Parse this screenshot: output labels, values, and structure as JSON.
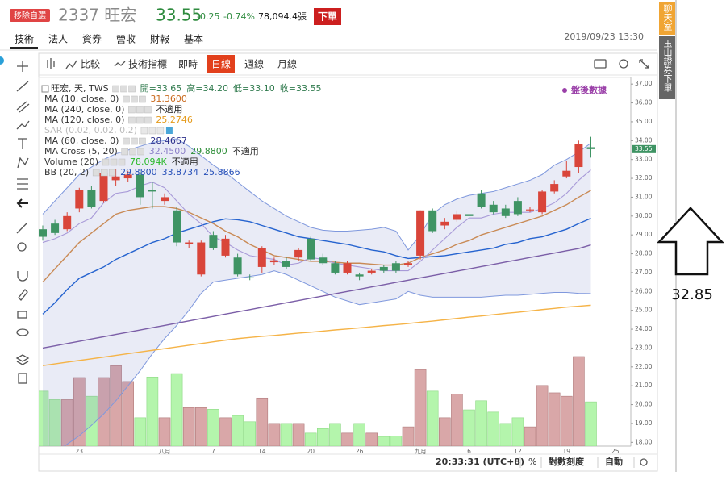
{
  "header": {
    "watch_button": "移除自選",
    "code_name": "2337 旺宏",
    "price": "33.55",
    "change": "-0.25",
    "change_pct": "-0.74%",
    "volume": "78,094.4張",
    "order_button": "下單"
  },
  "tabs": [
    "技術",
    "法人",
    "資券",
    "營收",
    "財報",
    "基本"
  ],
  "active_tab": 0,
  "datetime": "2019/09/23 13:30",
  "toolbar": {
    "compare": "比較",
    "indicators": "技術指標",
    "periods": [
      "即時",
      "日線",
      "週線",
      "月線"
    ],
    "active_period": 1
  },
  "chart_data": {
    "type": "candlestick",
    "after_hours_label": "盤後數據",
    "categories": [
      null,
      null,
      null,
      "23",
      null,
      null,
      null,
      null,
      null,
      null,
      "八月",
      null,
      null,
      null,
      "7",
      null,
      null,
      null,
      "14",
      null,
      null,
      null,
      "20",
      null,
      null,
      null,
      "26",
      null,
      null,
      null,
      null,
      "九月",
      null,
      null,
      null,
      "6",
      null,
      null,
      null,
      "12",
      null,
      null,
      null,
      "19",
      null,
      null,
      null,
      "25"
    ],
    "open": [
      29.3,
      29.6,
      29.3,
      30.4,
      31.4,
      30.8,
      31.9,
      32.0,
      32.2,
      31.4,
      30.8,
      30.3,
      28.5,
      26.9,
      29.0,
      27.9,
      27.8,
      26.75,
      27.3,
      27.55,
      27.6,
      27.8,
      28.8,
      27.8,
      27.5,
      27.0,
      26.9,
      27.0,
      27.3,
      27.5,
      27.4,
      27.9,
      30.3,
      29.5,
      29.8,
      30.1,
      31.2,
      30.6,
      30.4,
      30.8,
      30.3,
      30.2,
      31.3,
      32.1,
      32.6,
      33.65,
      null,
      null
    ],
    "high": [
      29.5,
      29.8,
      30.2,
      31.5,
      31.6,
      32.5,
      32.5,
      32.4,
      32.4,
      31.8,
      31.2,
      30.5,
      28.7,
      28.7,
      29.2,
      29.0,
      28.0,
      26.9,
      28.4,
      27.8,
      27.8,
      28.3,
      28.9,
      28.0,
      27.6,
      27.6,
      27.0,
      27.2,
      27.4,
      27.6,
      27.6,
      30.3,
      30.4,
      29.9,
      30.3,
      30.3,
      31.4,
      30.8,
      30.6,
      31.0,
      30.5,
      31.4,
      31.9,
      32.9,
      34.0,
      34.2,
      null,
      null
    ],
    "low": [
      28.7,
      29.0,
      29.2,
      30.2,
      30.4,
      30.7,
      31.6,
      31.8,
      30.6,
      30.4,
      30.6,
      28.4,
      28.3,
      26.8,
      28.2,
      27.8,
      26.8,
      26.6,
      27.0,
      27.4,
      27.2,
      27.6,
      27.6,
      27.4,
      26.9,
      26.9,
      26.6,
      26.9,
      27.0,
      27.0,
      27.3,
      27.7,
      29.1,
      29.3,
      29.7,
      29.9,
      30.4,
      30.1,
      29.9,
      30.0,
      30.2,
      30.1,
      31.2,
      32.0,
      32.3,
      33.1,
      null,
      null
    ],
    "close": [
      28.9,
      29.1,
      30.0,
      31.4,
      30.5,
      32.3,
      32.1,
      32.2,
      31.0,
      31.3,
      31.0,
      28.6,
      28.6,
      28.6,
      28.3,
      28.8,
      26.9,
      26.7,
      28.3,
      27.65,
      27.3,
      28.2,
      27.7,
      27.5,
      27.0,
      27.5,
      26.8,
      27.1,
      27.1,
      27.1,
      27.5,
      30.3,
      29.2,
      29.7,
      30.1,
      30.0,
      30.5,
      30.2,
      30.0,
      30.1,
      30.35,
      31.3,
      31.7,
      32.4,
      33.8,
      33.55,
      null,
      null
    ],
    "volume": [
      97,
      82,
      82,
      121,
      88,
      121,
      142,
      114,
      50,
      122,
      50,
      128,
      68,
      68,
      65,
      50,
      54,
      43,
      85,
      40,
      40,
      40,
      23,
      31,
      40,
      23,
      40,
      23,
      17,
      18,
      34,
      135,
      97,
      50,
      92,
      64,
      80,
      60,
      40,
      50,
      34,
      107,
      94,
      88,
      158,
      78.094,
      null,
      null
    ],
    "up_color": "#d9453a",
    "down_color": "#3f9464",
    "volume_up_color": "#d9a7a8",
    "volume_down_color": "#b4f5ac",
    "band": {
      "color": "#7f98dd",
      "fill": "rgba(120,128,200,0.16)",
      "upper": [
        30.1,
        30.8,
        31.5,
        32.2,
        32.6,
        33.0,
        33.3,
        33.5,
        33.7,
        33.9,
        34.0,
        34.1,
        33.7,
        33.2,
        32.7,
        32.3,
        31.8,
        31.3,
        30.8,
        30.4,
        30.0,
        29.7,
        29.4,
        29.25,
        29.2,
        29.2,
        29.25,
        29.3,
        29.4,
        29.2,
        28.2,
        29.0,
        30.1,
        30.6,
        30.9,
        31.1,
        31.2,
        31.3,
        31.5,
        31.7,
        31.9,
        32.2,
        32.7,
        33.0,
        33.4,
        33.87,
        null,
        null
      ],
      "lower": [
        17.0,
        17.5,
        17.9,
        18.35,
        18.9,
        19.5,
        20.2,
        21.0,
        21.8,
        22.7,
        23.5,
        24.2,
        25.0,
        25.9,
        26.5,
        26.6,
        26.7,
        26.8,
        26.9,
        27.1,
        26.9,
        26.6,
        26.3,
        26.0,
        25.7,
        25.5,
        25.3,
        25.4,
        25.5,
        25.6,
        26.0,
        25.8,
        25.7,
        25.7,
        25.7,
        25.7,
        25.7,
        25.75,
        25.8,
        25.8,
        25.85,
        25.9,
        25.95,
        25.95,
        25.9,
        25.89,
        null,
        null
      ]
    },
    "series": [
      {
        "color": "#f5b347",
        "values": [
          22.07,
          22.16,
          22.25,
          22.34,
          22.43,
          22.52,
          22.61,
          22.7,
          22.79,
          22.88,
          22.97,
          23.06,
          23.15,
          23.24,
          23.33,
          23.42,
          23.5,
          23.56,
          23.62,
          23.67,
          23.73,
          23.79,
          23.84,
          23.9,
          23.96,
          24.01,
          24.07,
          24.13,
          24.19,
          24.24,
          24.3,
          24.37,
          24.43,
          24.5,
          24.57,
          24.64,
          24.7,
          24.77,
          24.84,
          24.9,
          24.97,
          25.04,
          25.1,
          25.17,
          25.22,
          25.27,
          null,
          null
        ]
      },
      {
        "color": "#7b5ea7",
        "values": [
          23.0,
          23.12,
          23.24,
          23.36,
          23.48,
          23.6,
          23.72,
          23.84,
          23.96,
          24.08,
          24.2,
          24.32,
          24.44,
          24.56,
          24.68,
          24.8,
          24.92,
          25.04,
          25.16,
          25.28,
          25.4,
          25.52,
          25.64,
          25.76,
          25.88,
          26.0,
          26.12,
          26.24,
          26.36,
          26.48,
          26.6,
          26.72,
          26.84,
          26.96,
          27.08,
          27.2,
          27.32,
          27.44,
          27.56,
          27.68,
          27.8,
          27.92,
          28.04,
          28.16,
          28.28,
          28.47,
          null,
          null
        ]
      },
      {
        "color": "#2563cf",
        "values": [
          24.8,
          25.4,
          26.1,
          26.7,
          27.0,
          27.3,
          27.7,
          28.0,
          28.3,
          28.6,
          28.8,
          29.1,
          29.3,
          29.5,
          29.7,
          29.85,
          29.8,
          29.7,
          29.5,
          29.3,
          29.1,
          28.9,
          28.8,
          28.7,
          28.6,
          28.5,
          28.35,
          28.2,
          28.1,
          27.9,
          27.75,
          27.8,
          27.85,
          27.9,
          28.0,
          28.1,
          28.2,
          28.3,
          28.5,
          28.6,
          28.8,
          28.9,
          29.1,
          29.3,
          29.6,
          29.88,
          null,
          null
        ]
      },
      {
        "color": "#c98a55",
        "values": [
          26.5,
          27.2,
          27.9,
          28.6,
          29.1,
          29.6,
          30.1,
          30.3,
          30.4,
          30.5,
          30.5,
          30.4,
          30.2,
          29.9,
          29.6,
          29.2,
          28.9,
          28.5,
          28.2,
          27.9,
          27.8,
          27.7,
          27.6,
          27.6,
          27.55,
          27.5,
          27.5,
          27.45,
          27.4,
          27.4,
          27.5,
          27.8,
          28.0,
          28.2,
          28.5,
          28.7,
          29.0,
          29.2,
          29.4,
          29.6,
          29.8,
          30.0,
          30.3,
          30.6,
          31.0,
          31.36,
          null,
          null
        ]
      },
      {
        "color": "#a89ad8",
        "values": [
          28.6,
          28.8,
          29.1,
          29.6,
          29.9,
          30.7,
          31.2,
          31.3,
          31.6,
          31.8,
          31.5,
          30.8,
          30.1,
          29.6,
          28.9,
          28.6,
          28.2,
          27.9,
          27.8,
          27.7,
          27.4,
          27.5,
          27.8,
          27.7,
          27.5,
          27.4,
          27.3,
          27.2,
          27.1,
          27.1,
          27.1,
          27.6,
          28.2,
          28.8,
          29.4,
          29.9,
          29.9,
          30.1,
          30.2,
          30.2,
          30.2,
          30.4,
          30.7,
          31.2,
          31.9,
          32.45,
          null,
          null
        ]
      }
    ],
    "last_price_label": "33.55",
    "last_price_color": "#3f9464",
    "ylim": [
      17.8,
      37.35
    ],
    "yticks": [
      {
        "value": 18,
        "label": "18.00"
      },
      {
        "value": 19,
        "label": "19.00"
      },
      {
        "value": 20,
        "label": "20.00"
      },
      {
        "value": 21,
        "label": "21.00"
      },
      {
        "value": 22,
        "label": "22.00"
      },
      {
        "value": 23,
        "label": "23.00"
      },
      {
        "value": 24,
        "label": "24.00"
      },
      {
        "value": 25,
        "label": "25.00"
      },
      {
        "value": 26,
        "label": "26.00"
      },
      {
        "value": 27,
        "label": "27.00"
      },
      {
        "value": 28,
        "label": "28.00"
      },
      {
        "value": 29,
        "label": "29.00"
      },
      {
        "value": 30,
        "label": "30.00"
      },
      {
        "value": 31,
        "label": "31.00"
      },
      {
        "value": 32,
        "label": "32.00"
      },
      {
        "value": 33,
        "label": "33.00"
      },
      {
        "value": 34,
        "label": "34.00"
      },
      {
        "value": 35,
        "label": "35.00"
      },
      {
        "value": 36,
        "label": "36.00"
      },
      {
        "value": 37,
        "label": "37.00"
      }
    ],
    "grid": false,
    "legend_rows": [
      {
        "label": "旺宏, 天, TWS",
        "readings": [
          {
            "text": "開=33.65",
            "color": "#2f7a4d"
          },
          {
            "text": "高=34.20",
            "color": "#2f7a4d"
          },
          {
            "text": "低=33.10",
            "color": "#2f7a4d"
          },
          {
            "text": "收=33.55",
            "color": "#2f7a4d"
          }
        ]
      },
      {
        "label": "MA (10, close, 0)",
        "readings": [
          {
            "text": "31.3600",
            "color": "#c96a1e"
          }
        ]
      },
      {
        "label": "MA (240, close, 0)",
        "readings": [
          {
            "text": "不適用",
            "color": "#222222"
          }
        ]
      },
      {
        "label": "MA (120, close, 0)",
        "readings": [
          {
            "text": "25.2746",
            "color": "#e59a1a"
          }
        ]
      },
      {
        "label": "SAR (0.02, 0.02, 0.2)",
        "dim": true,
        "readings": []
      },
      {
        "label": "MA (60, close, 0)",
        "readings": [
          {
            "text": "28.4667",
            "color": "#2b2f8a"
          }
        ]
      },
      {
        "label": "MA Cross (5, 20)",
        "readings": [
          {
            "text": "32.4500",
            "color": "#8b7fc8"
          },
          {
            "text": "29.8800",
            "color": "#2f8f3a"
          },
          {
            "text": "不適用",
            "color": "#222222"
          }
        ]
      },
      {
        "label": "Volume (20)",
        "readings": [
          {
            "text": "78.094K",
            "color": "#28b828"
          },
          {
            "text": "不適用",
            "color": "#222222"
          }
        ]
      },
      {
        "label": "BB (20, 2)",
        "readings": [
          {
            "text": "29.8800",
            "color": "#2750b8"
          },
          {
            "text": "33.8734",
            "color": "#2750b8"
          },
          {
            "text": "25.8866",
            "color": "#2750b8"
          }
        ]
      }
    ]
  },
  "status_bar": {
    "clock": "20:33:31 (UTC+8)",
    "percent": "%",
    "log_scale": "對數刻度",
    "auto": "自動"
  },
  "sidebar": [
    "聊天室",
    "玉山證券下單"
  ],
  "annotation": "32.85"
}
